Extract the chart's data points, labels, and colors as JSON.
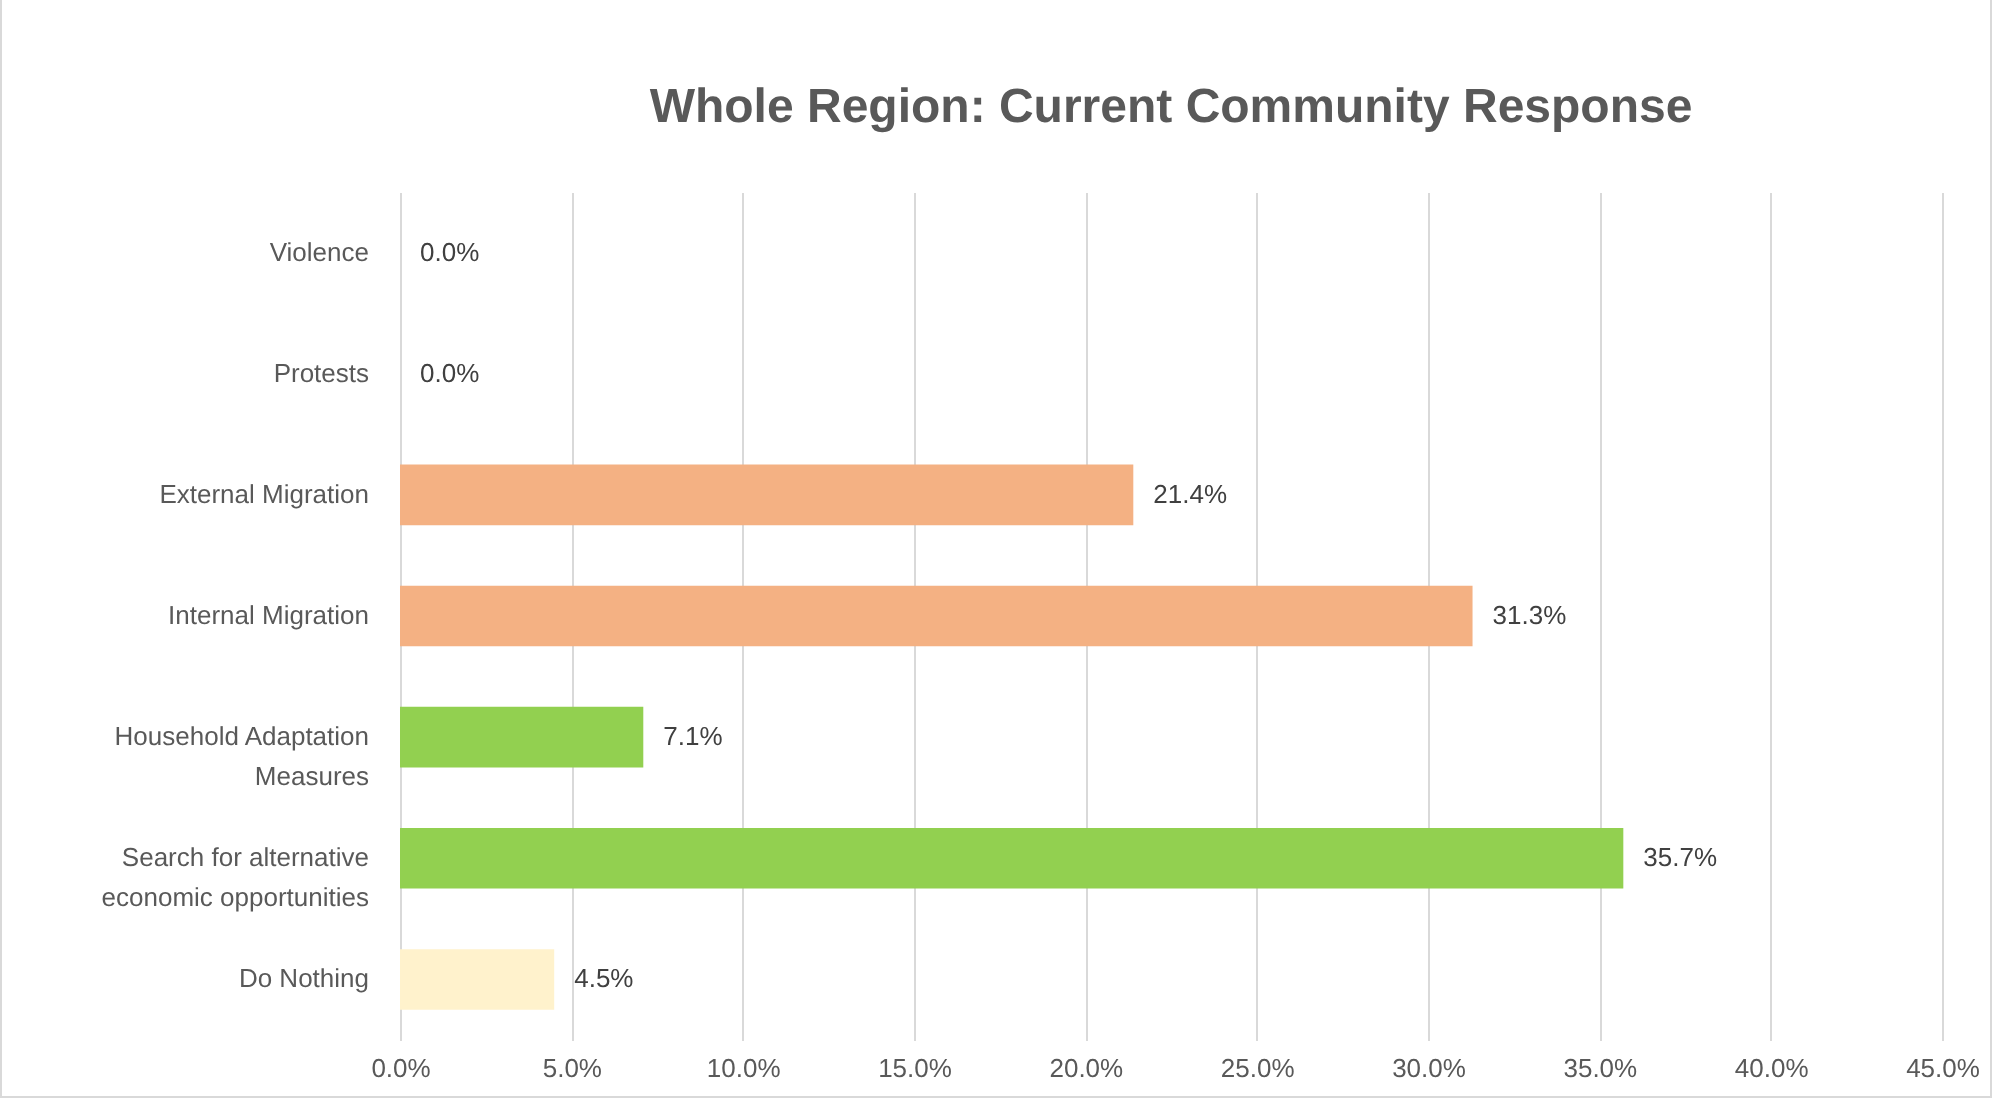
{
  "chart_data": {
    "type": "bar",
    "orientation": "horizontal",
    "title": "Whole Region: Current Community Response",
    "categories": [
      "Violence",
      "Protests",
      "External Migration",
      "Internal Migration",
      "Household Adaptation Measures",
      "Search for alternative economic opportunities",
      "Do Nothing"
    ],
    "values": [
      0.0,
      0.0,
      21.4,
      31.3,
      7.1,
      35.7,
      4.5
    ],
    "value_labels": [
      "0.0%",
      "0.0%",
      "21.4%",
      "31.3%",
      "7.1%",
      "35.7%",
      "4.5%"
    ],
    "colors": [
      "#d9d9d9",
      "#d9d9d9",
      "#f4b183",
      "#f4b183",
      "#92d050",
      "#92d050",
      "#fff2cc"
    ],
    "xlim": [
      0,
      45
    ],
    "xticks": [
      {
        "value": 0,
        "label": "0.0%"
      },
      {
        "value": 5,
        "label": "5.0%"
      },
      {
        "value": 10,
        "label": "10.0%"
      },
      {
        "value": 15,
        "label": "15.0%"
      },
      {
        "value": 20,
        "label": "20.0%"
      },
      {
        "value": 25,
        "label": "25.0%"
      },
      {
        "value": 30,
        "label": "30.0%"
      },
      {
        "value": 35,
        "label": "35.0%"
      },
      {
        "value": 40,
        "label": "40.0%"
      },
      {
        "value": 45,
        "label": "45.0%"
      }
    ],
    "grid": "x"
  }
}
